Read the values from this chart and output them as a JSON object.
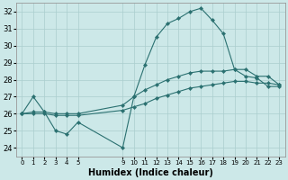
{
  "background_color": "#cce8e8",
  "grid_color": "#aacece",
  "line_color": "#2a7070",
  "xlabel": "Humidex (Indice chaleur)",
  "xlabel_fontsize": 7,
  "ylim": [
    23.5,
    32.5
  ],
  "yticks": [
    24,
    25,
    26,
    27,
    28,
    29,
    30,
    31,
    32
  ],
  "lines": [
    {
      "x": [
        0,
        1,
        2,
        3,
        4,
        5,
        9,
        10,
        11,
        12,
        13,
        14,
        15,
        16,
        17,
        18,
        19,
        20,
        21,
        22,
        23
      ],
      "y": [
        26.0,
        27.0,
        26.1,
        25.0,
        24.8,
        25.5,
        24.0,
        27.0,
        28.9,
        30.5,
        31.3,
        31.6,
        32.0,
        32.2,
        31.5,
        30.7,
        28.6,
        28.2,
        28.1,
        27.6,
        27.6
      ]
    },
    {
      "x": [
        0,
        1,
        2,
        3,
        4,
        5,
        9,
        10,
        11,
        12,
        13,
        14,
        15,
        16,
        17,
        18,
        19,
        20,
        21,
        22,
        23
      ],
      "y": [
        26.0,
        26.1,
        26.1,
        26.0,
        26.0,
        26.0,
        26.5,
        27.0,
        27.4,
        27.7,
        28.0,
        28.2,
        28.4,
        28.5,
        28.5,
        28.5,
        28.6,
        28.6,
        28.2,
        28.2,
        27.7
      ]
    },
    {
      "x": [
        0,
        1,
        2,
        3,
        4,
        5,
        9,
        10,
        11,
        12,
        13,
        14,
        15,
        16,
        17,
        18,
        19,
        20,
        21,
        22,
        23
      ],
      "y": [
        26.0,
        26.0,
        26.0,
        25.9,
        25.9,
        25.9,
        26.2,
        26.4,
        26.6,
        26.9,
        27.1,
        27.3,
        27.5,
        27.6,
        27.7,
        27.8,
        27.9,
        27.9,
        27.8,
        27.8,
        27.7
      ]
    }
  ],
  "xtick_positions": [
    0,
    1,
    2,
    3,
    4,
    5,
    9,
    10,
    11,
    12,
    13,
    14,
    15,
    16,
    17,
    18,
    19,
    20,
    21,
    22,
    23
  ],
  "xtick_labels": [
    "0",
    "1",
    "2",
    "3",
    "4",
    "5",
    "9",
    "10",
    "11",
    "12",
    "13",
    "14",
    "15",
    "16",
    "17",
    "18",
    "19",
    "20",
    "21",
    "22",
    "23"
  ],
  "xlim": [
    -0.5,
    23.5
  ]
}
